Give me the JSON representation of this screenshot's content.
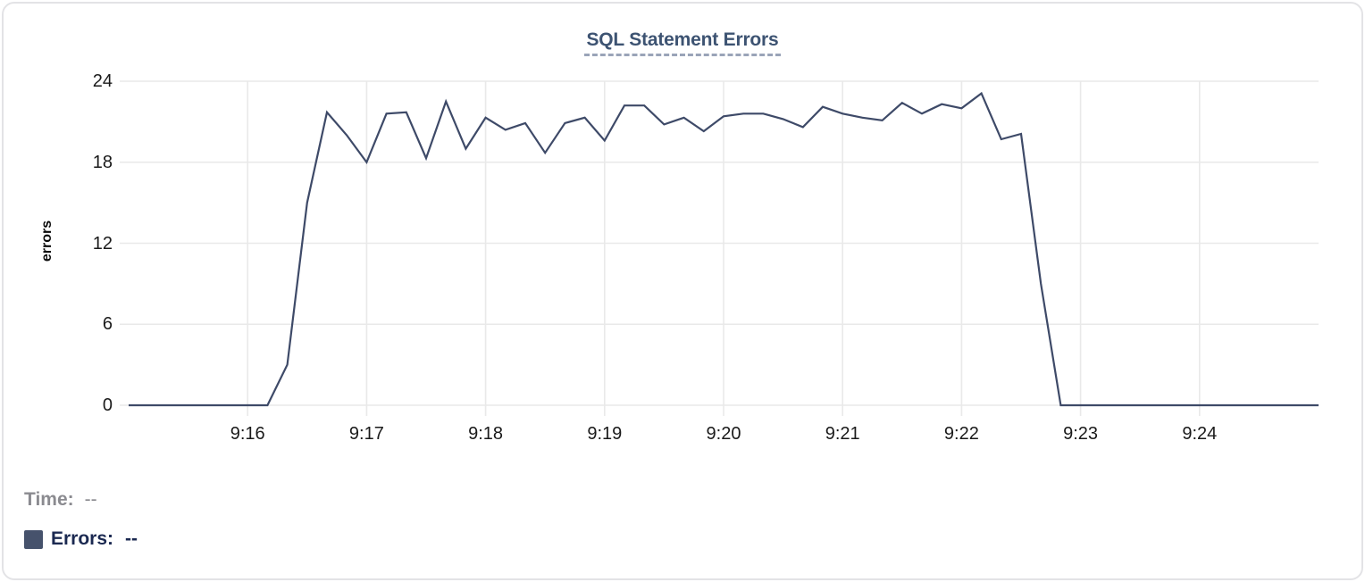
{
  "chart_data": {
    "type": "line",
    "title": "SQL Statement Errors",
    "ylabel": "errors",
    "xlabel": "",
    "ylim": [
      0,
      24
    ],
    "y_tick_labels": [
      "24",
      "18",
      "12",
      "6",
      "0"
    ],
    "x_tick_labels": [
      "9:16",
      "9:17",
      "9:18",
      "9:19",
      "9:20",
      "9:21",
      "9:22",
      "9:23",
      "9:24"
    ],
    "x_start": "9:15:00",
    "x_end": "9:25:00",
    "interval_seconds": 10,
    "grid": true,
    "legend_position": "bottom-left",
    "series": [
      {
        "name": "Errors",
        "color": "#3e4a68",
        "values": [
          0,
          0,
          0,
          0,
          0,
          0,
          0,
          0,
          3,
          15,
          21.7,
          20,
          18,
          21.6,
          21.7,
          18.3,
          22.5,
          19,
          21.3,
          20.4,
          20.9,
          18.7,
          20.9,
          21.3,
          19.6,
          22.2,
          22.2,
          20.8,
          21.3,
          20.3,
          21.4,
          21.6,
          21.6,
          21.2,
          20.6,
          22.1,
          21.6,
          21.3,
          21.1,
          22.4,
          21.6,
          22.3,
          22,
          23.1,
          19.7,
          20.1,
          9,
          0,
          0,
          0,
          0,
          0,
          0,
          0,
          0,
          0,
          0,
          0,
          0,
          0,
          0
        ]
      }
    ]
  },
  "legend": {
    "time_label": "Time:",
    "time_value": "--",
    "series_label": "Errors:",
    "series_value": "--",
    "swatch_color": "#46526c"
  },
  "colors": {
    "title": "#3d5372",
    "title_underline": "#9aa4b8",
    "line": "#3e4a68",
    "gridline": "#e9e9e9",
    "legend_muted": "#8b8b90",
    "legend_dark": "#1b2951"
  }
}
